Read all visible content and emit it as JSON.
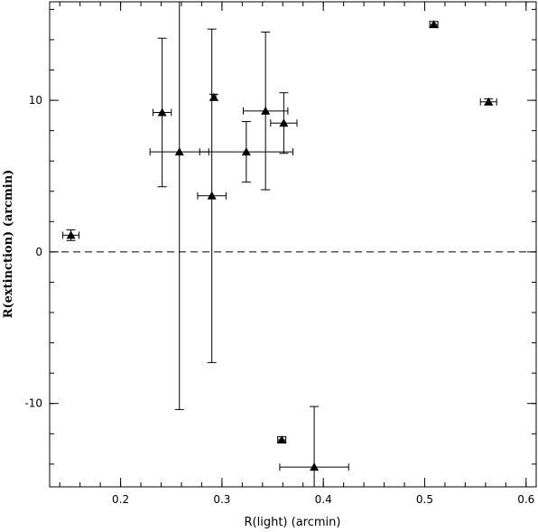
{
  "chart_data": {
    "type": "scatter",
    "xlabel": "R(light) (arcmin)",
    "ylabel": "R(extinction) (arcmin)",
    "xlim": [
      0.13,
      0.61
    ],
    "ylim": [
      -15.5,
      16.5
    ],
    "x_ticks": [
      0.2,
      0.3,
      0.4,
      0.5,
      0.6
    ],
    "x_tick_labels": [
      "0.2",
      "0.3",
      "0.4",
      "0.5",
      "0.6"
    ],
    "y_ticks": [
      -10,
      0,
      10
    ],
    "y_tick_labels": [
      "-10",
      "0",
      "10"
    ],
    "x_minor_step": 0.02,
    "y_minor_step": 2,
    "grid": false,
    "reference_line": {
      "y": 0,
      "style": "dashed"
    },
    "marker": "triangle",
    "points": [
      {
        "x": 0.151,
        "y": 1.1,
        "xerr": 0.008,
        "yerr": 0.35
      },
      {
        "x": 0.241,
        "y": 9.2,
        "xerr": 0.009,
        "yerr": 4.9
      },
      {
        "x": 0.258,
        "y": 6.6,
        "xerr": 0.029,
        "yerr": 17.0
      },
      {
        "x": 0.29,
        "y": 3.7,
        "xerr": 0.014,
        "yerr": 11.0
      },
      {
        "x": 0.292,
        "y": 10.2,
        "xerr": 0.002,
        "yerr": 0.2
      },
      {
        "x": 0.324,
        "y": 6.6,
        "xerr": 0.046,
        "yerr": 2.0
      },
      {
        "x": 0.343,
        "y": 9.3,
        "xerr": 0.022,
        "yerr": 5.2
      },
      {
        "x": 0.361,
        "y": 8.5,
        "xerr": 0.013,
        "yerr": 2.0
      },
      {
        "x": 0.359,
        "y": -12.4,
        "xerr": 0.004,
        "yerr": 0.2
      },
      {
        "x": 0.391,
        "y": -14.2,
        "xerr": 0.034,
        "yerr": 4.0
      },
      {
        "x": 0.509,
        "y": 15.0,
        "xerr": 0.004,
        "yerr": 0.2
      },
      {
        "x": 0.563,
        "y": 9.9,
        "xerr": 0.008,
        "yerr": 0.2
      }
    ]
  }
}
